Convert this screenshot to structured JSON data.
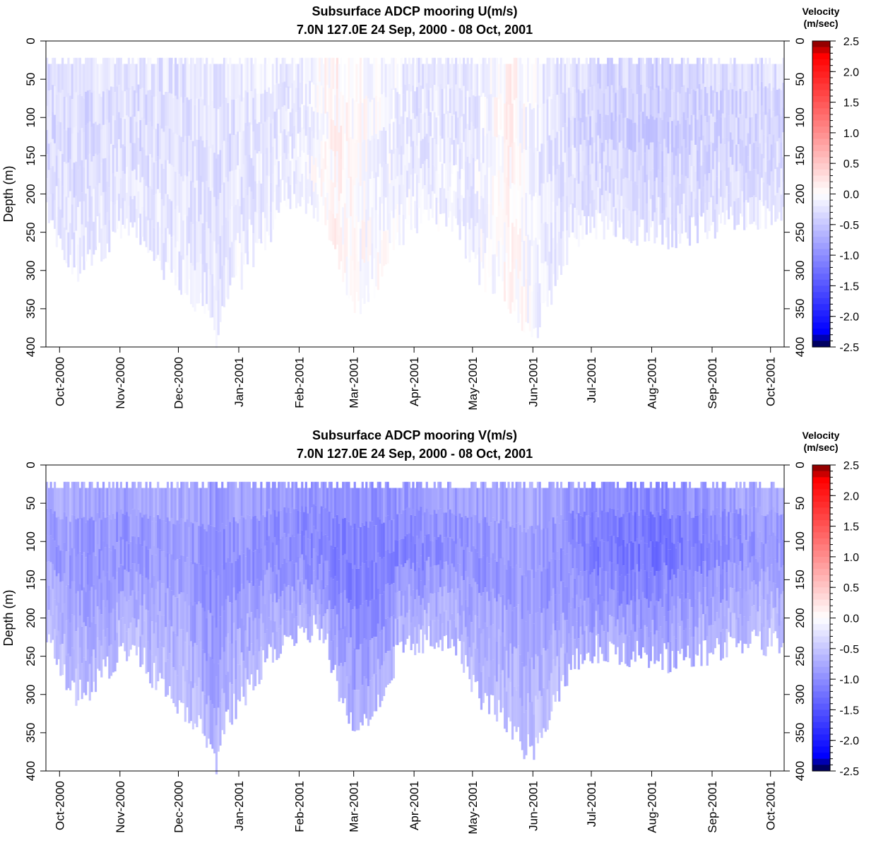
{
  "chart_data": [
    {
      "type": "heatmap",
      "variable": "U",
      "title": "Subsurface ADCP mooring U(m/s)",
      "subtitle": "7.0N 127.0E     24 Sep, 2000 - 08 Oct, 2001",
      "xlabel": "",
      "ylabel": "Depth (m)",
      "xlim": [
        "2000-09-24",
        "2001-10-08"
      ],
      "ylim": [
        400,
        0
      ],
      "x_ticks": [
        "2000-10-01",
        "2000-11-01",
        "2000-12-01",
        "2001-01-01",
        "2001-02-01",
        "2001-03-01",
        "2001-04-01",
        "2001-05-01",
        "2001-06-01",
        "2001-07-01",
        "2001-08-01",
        "2001-09-01",
        "2001-10-01"
      ],
      "x_tick_labels": [
        "Oct-2000",
        "Nov-2000",
        "Dec-2000",
        "Jan-2001",
        "Feb-2001",
        "Mar-2001",
        "Apr-2001",
        "May-2001",
        "Jun-2001",
        "Jul-2001",
        "Aug-2001",
        "Sep-2001",
        "Oct-2001"
      ],
      "y_ticks": [
        0,
        50,
        100,
        150,
        200,
        250,
        300,
        350,
        400
      ],
      "y_tick_labels": [
        "0",
        "50",
        "100",
        "150",
        "200",
        "250",
        "300",
        "350",
        "400"
      ],
      "top_depth_m": 30,
      "bottom_depth_m": [
        [
          "2000-09-24",
          230
        ],
        [
          "2000-10-01",
          260
        ],
        [
          "2000-10-08",
          300
        ],
        [
          "2000-10-15",
          295
        ],
        [
          "2000-10-22",
          275
        ],
        [
          "2000-11-01",
          245
        ],
        [
          "2000-11-08",
          235
        ],
        [
          "2000-11-15",
          265
        ],
        [
          "2000-11-22",
          290
        ],
        [
          "2000-12-01",
          315
        ],
        [
          "2000-12-08",
          335
        ],
        [
          "2000-12-15",
          350
        ],
        [
          "2000-12-20",
          385
        ],
        [
          "2000-12-25",
          330
        ],
        [
          "2001-01-01",
          310
        ],
        [
          "2001-01-08",
          280
        ],
        [
          "2001-01-15",
          255
        ],
        [
          "2001-01-22",
          230
        ],
        [
          "2001-02-01",
          215
        ],
        [
          "2001-02-08",
          215
        ],
        [
          "2001-02-15",
          240
        ],
        [
          "2001-02-22",
          300
        ],
        [
          "2001-03-01",
          340
        ],
        [
          "2001-03-08",
          335
        ],
        [
          "2001-03-15",
          300
        ],
        [
          "2001-03-22",
          255
        ],
        [
          "2001-04-01",
          235
        ],
        [
          "2001-04-08",
          230
        ],
        [
          "2001-04-15",
          230
        ],
        [
          "2001-04-22",
          235
        ],
        [
          "2001-05-01",
          290
        ],
        [
          "2001-05-08",
          320
        ],
        [
          "2001-05-15",
          315
        ],
        [
          "2001-05-22",
          350
        ],
        [
          "2001-06-01",
          380
        ],
        [
          "2001-06-08",
          340
        ],
        [
          "2001-06-15",
          290
        ],
        [
          "2001-06-22",
          255
        ],
        [
          "2001-07-01",
          240
        ],
        [
          "2001-07-15",
          245
        ],
        [
          "2001-08-01",
          250
        ],
        [
          "2001-08-15",
          255
        ],
        [
          "2001-09-01",
          240
        ],
        [
          "2001-09-15",
          230
        ],
        [
          "2001-10-08",
          230
        ]
      ],
      "mean_value_ms": [
        [
          "2000-09-24",
          -0.35
        ],
        [
          "2000-11-01",
          -0.3
        ],
        [
          "2000-12-01",
          -0.3
        ],
        [
          "2001-01-01",
          -0.25
        ],
        [
          "2001-02-01",
          -0.2
        ],
        [
          "2001-02-20",
          0.1
        ],
        [
          "2001-03-10",
          -0.05
        ],
        [
          "2001-04-01",
          -0.25
        ],
        [
          "2001-05-01",
          -0.2
        ],
        [
          "2001-05-20",
          0.1
        ],
        [
          "2001-06-05",
          -0.2
        ],
        [
          "2001-07-01",
          -0.4
        ],
        [
          "2001-08-01",
          -0.45
        ],
        [
          "2001-09-01",
          -0.4
        ],
        [
          "2001-10-08",
          -0.35
        ]
      ],
      "colorbar": {
        "title": "Velocity",
        "units": "(m/sec)",
        "range": [
          -2.5,
          2.5
        ],
        "tick_values": [
          2.5,
          2.0,
          1.5,
          1.0,
          0.5,
          0.0,
          -0.5,
          -1.0,
          -1.5,
          -2.0,
          -2.5
        ],
        "tick_labels": [
          "2.5",
          "2.0",
          "1.5",
          "1.0",
          "0.5",
          "0.0",
          "-0.5",
          "-1.0",
          "-1.5",
          "-2.0",
          "-2.5"
        ],
        "colors": {
          "max": "#7a0000",
          "positive": "#ff0000",
          "zero": "#ffffff",
          "negative": "#0000ff",
          "min": "#00003a"
        }
      },
      "grid": false
    },
    {
      "type": "heatmap",
      "variable": "V",
      "title": "Subsurface ADCP mooring V(m/s)",
      "subtitle": "7.0N 127.0E     24 Sep, 2000 - 08 Oct, 2001",
      "xlabel": "",
      "ylabel": "Depth (m)",
      "xlim": [
        "2000-09-24",
        "2001-10-08"
      ],
      "ylim": [
        400,
        0
      ],
      "x_ticks": [
        "2000-10-01",
        "2000-11-01",
        "2000-12-01",
        "2001-01-01",
        "2001-02-01",
        "2001-03-01",
        "2001-04-01",
        "2001-05-01",
        "2001-06-01",
        "2001-07-01",
        "2001-08-01",
        "2001-09-01",
        "2001-10-01"
      ],
      "x_tick_labels": [
        "Oct-2000",
        "Nov-2000",
        "Dec-2000",
        "Jan-2001",
        "Feb-2001",
        "Mar-2001",
        "Apr-2001",
        "May-2001",
        "Jun-2001",
        "Jul-2001",
        "Aug-2001",
        "Sep-2001",
        "Oct-2001"
      ],
      "y_ticks": [
        0,
        50,
        100,
        150,
        200,
        250,
        300,
        350,
        400
      ],
      "y_tick_labels": [
        "0",
        "50",
        "100",
        "150",
        "200",
        "250",
        "300",
        "350",
        "400"
      ],
      "top_depth_m": 30,
      "bottom_depth_m": [
        [
          "2000-09-24",
          230
        ],
        [
          "2000-10-01",
          260
        ],
        [
          "2000-10-08",
          300
        ],
        [
          "2000-10-15",
          295
        ],
        [
          "2000-10-22",
          275
        ],
        [
          "2000-11-01",
          245
        ],
        [
          "2000-11-08",
          235
        ],
        [
          "2000-11-15",
          265
        ],
        [
          "2000-11-22",
          290
        ],
        [
          "2000-12-01",
          315
        ],
        [
          "2000-12-08",
          335
        ],
        [
          "2000-12-15",
          350
        ],
        [
          "2000-12-20",
          385
        ],
        [
          "2000-12-25",
          330
        ],
        [
          "2001-01-01",
          310
        ],
        [
          "2001-01-08",
          280
        ],
        [
          "2001-01-15",
          255
        ],
        [
          "2001-01-22",
          230
        ],
        [
          "2001-02-01",
          215
        ],
        [
          "2001-02-08",
          215
        ],
        [
          "2001-02-15",
          240
        ],
        [
          "2001-02-22",
          300
        ],
        [
          "2001-03-01",
          340
        ],
        [
          "2001-03-08",
          335
        ],
        [
          "2001-03-15",
          300
        ],
        [
          "2001-03-22",
          255
        ],
        [
          "2001-04-01",
          235
        ],
        [
          "2001-04-08",
          230
        ],
        [
          "2001-04-15",
          230
        ],
        [
          "2001-04-22",
          235
        ],
        [
          "2001-05-01",
          290
        ],
        [
          "2001-05-08",
          320
        ],
        [
          "2001-05-15",
          315
        ],
        [
          "2001-05-22",
          350
        ],
        [
          "2001-06-01",
          380
        ],
        [
          "2001-06-08",
          340
        ],
        [
          "2001-06-15",
          290
        ],
        [
          "2001-06-22",
          255
        ],
        [
          "2001-07-01",
          240
        ],
        [
          "2001-07-15",
          245
        ],
        [
          "2001-08-01",
          250
        ],
        [
          "2001-08-15",
          255
        ],
        [
          "2001-09-01",
          240
        ],
        [
          "2001-09-15",
          230
        ],
        [
          "2001-10-08",
          230
        ]
      ],
      "mean_value_ms": [
        [
          "2000-09-24",
          -0.9
        ],
        [
          "2000-11-01",
          -1.0
        ],
        [
          "2000-12-01",
          -0.9
        ],
        [
          "2000-12-20",
          -1.1
        ],
        [
          "2001-01-01",
          -1.0
        ],
        [
          "2001-02-01",
          -1.1
        ],
        [
          "2001-03-01",
          -1.2
        ],
        [
          "2001-04-01",
          -1.1
        ],
        [
          "2001-05-01",
          -1.0
        ],
        [
          "2001-06-01",
          -0.9
        ],
        [
          "2001-07-01",
          -1.2
        ],
        [
          "2001-08-01",
          -1.3
        ],
        [
          "2001-09-01",
          -1.1
        ],
        [
          "2001-10-08",
          -0.9
        ]
      ],
      "colorbar": {
        "title": "Velocity",
        "units": "(m/sec)",
        "range": [
          -2.5,
          2.5
        ],
        "tick_values": [
          2.5,
          2.0,
          1.5,
          1.0,
          0.5,
          0.0,
          -0.5,
          -1.0,
          -1.5,
          -2.0,
          -2.5
        ],
        "tick_labels": [
          "2.5",
          "2.0",
          "1.5",
          "1.0",
          "0.5",
          "0.0",
          "-0.5",
          "-1.0",
          "-1.5",
          "-2.0",
          "-2.5"
        ],
        "colors": {
          "max": "#7a0000",
          "positive": "#ff0000",
          "zero": "#ffffff",
          "negative": "#0000ff",
          "min": "#00003a"
        }
      },
      "grid": false
    }
  ]
}
